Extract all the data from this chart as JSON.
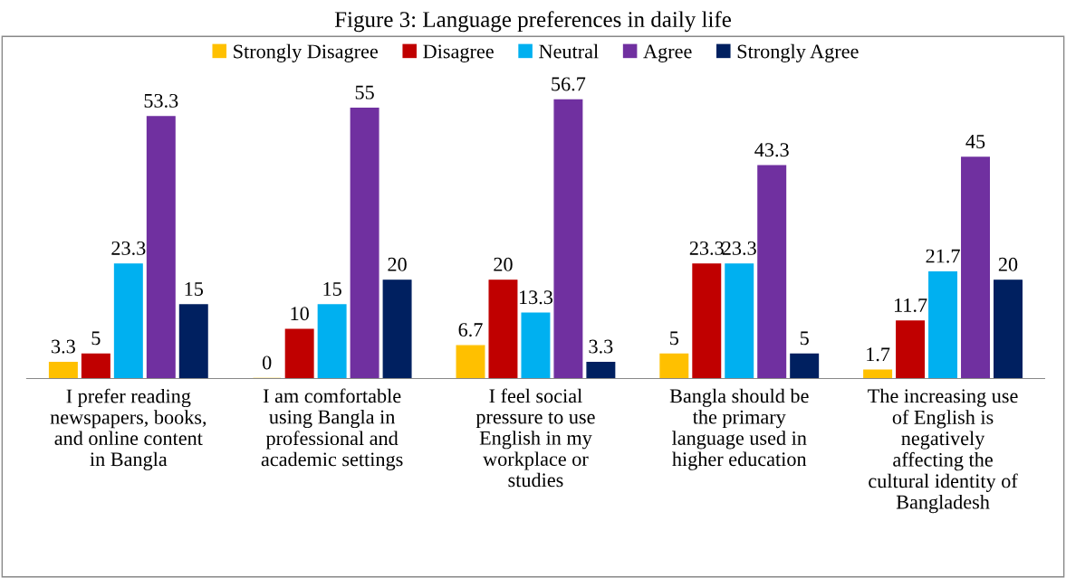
{
  "chart_data": {
    "type": "bar",
    "title": "Figure 3: Language preferences in daily life",
    "categories": [
      "I prefer reading\nnewspapers, books,\nand online content\nin Bangla",
      "I am comfortable\nusing Bangla in\nprofessional and\nacademic settings",
      "I feel social\npressure to use\nEnglish in my\nworkplace or\nstudies",
      "Bangla should be\nthe primary\nlanguage used in\nhigher education",
      "The increasing use\nof English is\nnegatively\naffecting the\ncultural identity of\nBangladesh"
    ],
    "series": [
      {
        "name": "Strongly Disagree",
        "color": "#ffc000",
        "values": [
          3.3,
          0,
          6.7,
          5,
          1.7
        ]
      },
      {
        "name": "Disagree",
        "color": "#c00000",
        "values": [
          5,
          10,
          20,
          23.3,
          11.7
        ]
      },
      {
        "name": "Neutral",
        "color": "#00b0f0",
        "values": [
          23.3,
          15,
          13.3,
          23.3,
          21.7
        ]
      },
      {
        "name": "Agree",
        "color": "#7030a0",
        "values": [
          53.3,
          55,
          56.7,
          43.3,
          45
        ]
      },
      {
        "name": "Strongly Agree",
        "color": "#002060",
        "values": [
          15,
          20,
          3.3,
          5,
          20
        ]
      }
    ],
    "data_labels": true,
    "legend": "top",
    "grid": false
  }
}
